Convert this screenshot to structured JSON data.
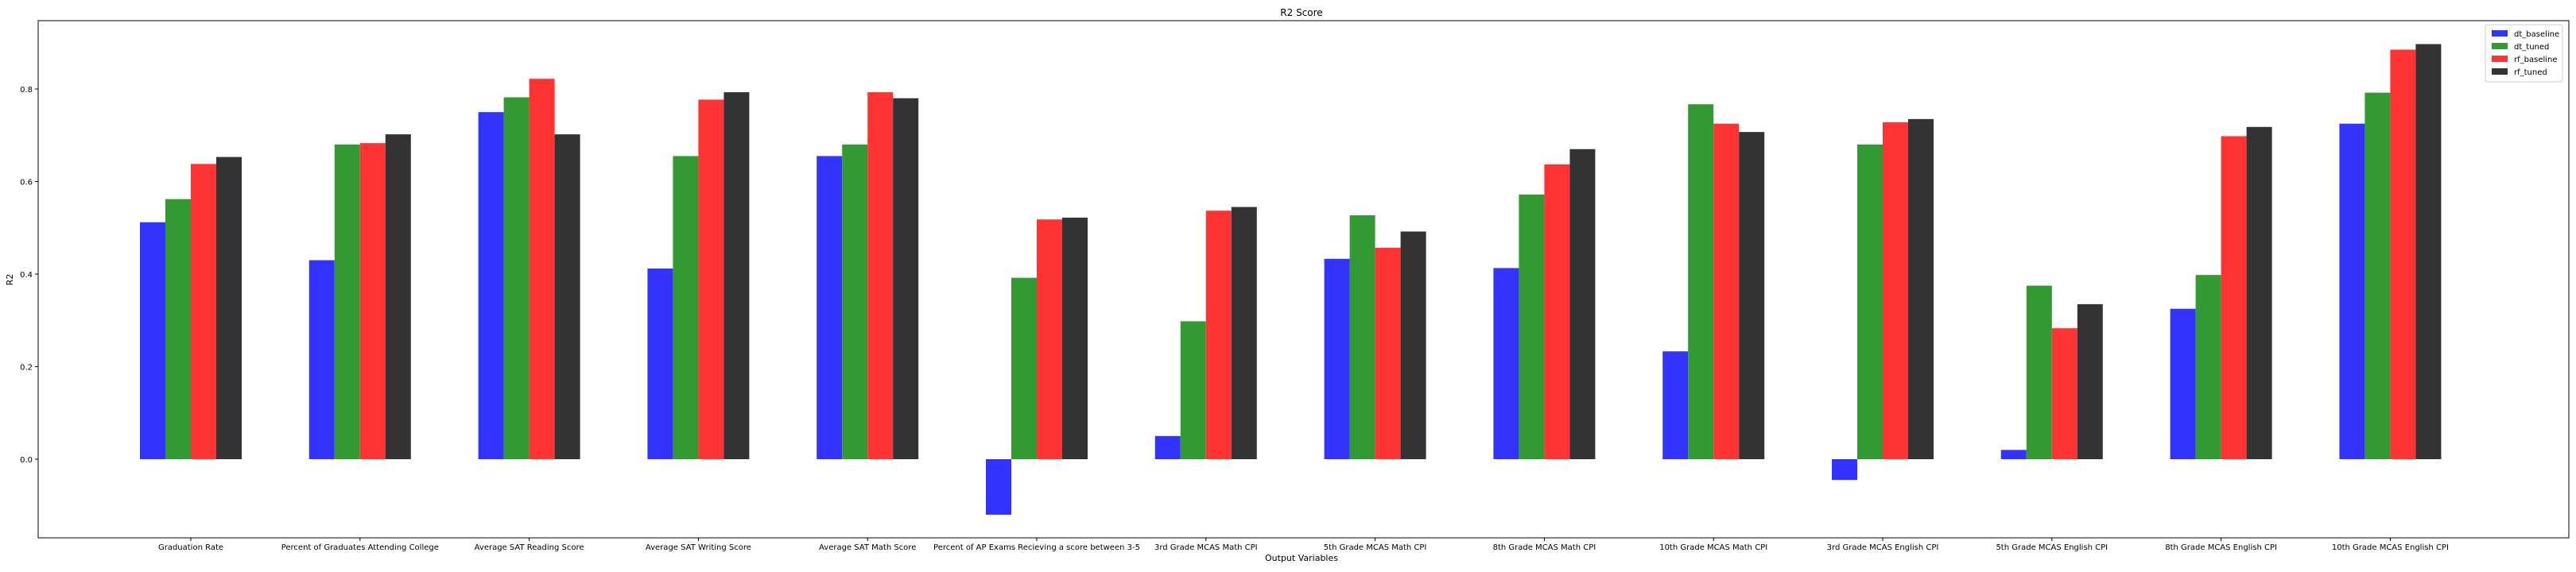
{
  "chart_data": {
    "type": "bar",
    "title": "R2 Score",
    "xlabel": "Output Variables",
    "ylabel": "R2",
    "ylim": [
      -0.17,
      0.94
    ],
    "yticks": [
      "0.0",
      "0.2",
      "0.4",
      "0.6",
      "0.8"
    ],
    "grid": false,
    "legend_position": "top-right",
    "categories": [
      "Graduation Rate",
      "Percent of Graduates Attending College",
      "Average SAT Reading Score",
      "Average SAT Writing Score",
      "Average SAT Math Score",
      "Percent of AP Exams Recieving a score between 3-5",
      "3rd Grade MCAS Math CPI",
      "5th Grade MCAS Math CPI",
      "8th Grade MCAS Math CPI",
      "10th Grade MCAS Math CPI",
      "3rd Grade MCAS English CPI",
      "5th Grade MCAS English CPI",
      "8th Grade MCAS English CPI",
      "10th Grade MCAS English CPI"
    ],
    "series": [
      {
        "name": "dt_baseline",
        "color": "#3333ff",
        "values": [
          0.512,
          0.43,
          0.75,
          0.412,
          0.655,
          -0.12,
          0.05,
          0.433,
          0.413,
          0.233,
          -0.045,
          0.02,
          0.325,
          0.725
        ]
      },
      {
        "name": "dt_tuned",
        "color": "#339933",
        "values": [
          0.562,
          0.68,
          0.782,
          0.655,
          0.68,
          0.392,
          0.298,
          0.527,
          0.572,
          0.767,
          0.68,
          0.375,
          0.398,
          0.792
        ]
      },
      {
        "name": "rf_baseline",
        "color": "#ff3333",
        "values": [
          0.638,
          0.683,
          0.822,
          0.777,
          0.793,
          0.518,
          0.537,
          0.457,
          0.637,
          0.725,
          0.728,
          0.283,
          0.698,
          0.885
        ]
      },
      {
        "name": "rf_tuned",
        "color": "#333333",
        "values": [
          0.653,
          0.702,
          0.702,
          0.793,
          0.78,
          0.522,
          0.545,
          0.492,
          0.67,
          0.707,
          0.735,
          0.335,
          0.718,
          0.897
        ]
      }
    ]
  }
}
